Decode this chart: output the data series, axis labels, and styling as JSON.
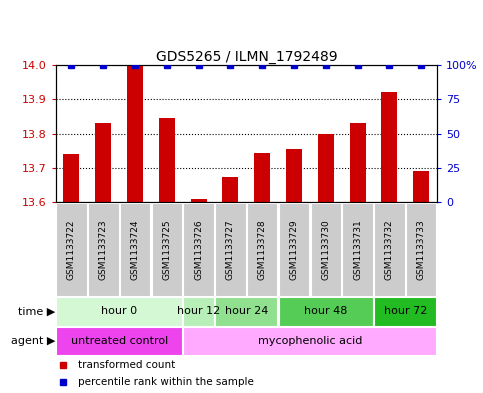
{
  "title": "GDS5265 / ILMN_1792489",
  "samples": [
    "GSM1133722",
    "GSM1133723",
    "GSM1133724",
    "GSM1133725",
    "GSM1133726",
    "GSM1133727",
    "GSM1133728",
    "GSM1133729",
    "GSM1133730",
    "GSM1133731",
    "GSM1133732",
    "GSM1133733"
  ],
  "transformed_count": [
    13.74,
    13.83,
    14.0,
    13.845,
    13.61,
    13.675,
    13.745,
    13.755,
    13.8,
    13.83,
    13.92,
    13.69
  ],
  "percentile_rank": [
    100,
    100,
    100,
    100,
    100,
    100,
    100,
    100,
    100,
    100,
    100,
    100
  ],
  "ylim_left": [
    13.6,
    14.0
  ],
  "ylim_right": [
    0,
    100
  ],
  "yticks_left": [
    13.6,
    13.7,
    13.8,
    13.9,
    14.0
  ],
  "yticks_right": [
    0,
    25,
    50,
    75,
    100
  ],
  "bar_color": "#cc0000",
  "dot_color": "#0000cc",
  "time_groups": [
    {
      "label": "hour 0",
      "start": 0,
      "end": 3
    },
    {
      "label": "hour 12",
      "start": 4,
      "end": 4
    },
    {
      "label": "hour 24",
      "start": 5,
      "end": 6
    },
    {
      "label": "hour 48",
      "start": 7,
      "end": 9
    },
    {
      "label": "hour 72",
      "start": 10,
      "end": 11
    }
  ],
  "time_group_colors": [
    "#d4f7d4",
    "#b8efb8",
    "#90e090",
    "#55cc55",
    "#22bb22"
  ],
  "agent_groups": [
    {
      "label": "untreated control",
      "start": 0,
      "end": 3
    },
    {
      "label": "mycophenolic acid",
      "start": 4,
      "end": 11
    }
  ],
  "agent_group_colors": [
    "#ee44ee",
    "#ffaaff"
  ],
  "sample_box_color": "#cccccc",
  "sample_box_edge": "#ffffff",
  "legend_red_label": "transformed count",
  "legend_blue_label": "percentile rank within the sample",
  "time_label": "time",
  "agent_label": "agent",
  "bar_width": 0.5,
  "dot_marker": "s",
  "dot_size": 4,
  "grid_linestyle": ":",
  "grid_linewidth": 0.8,
  "grid_color": "black",
  "title_fontsize": 10,
  "tick_fontsize": 8,
  "label_fontsize": 8,
  "sample_fontsize": 6.5,
  "row_fontsize": 8
}
